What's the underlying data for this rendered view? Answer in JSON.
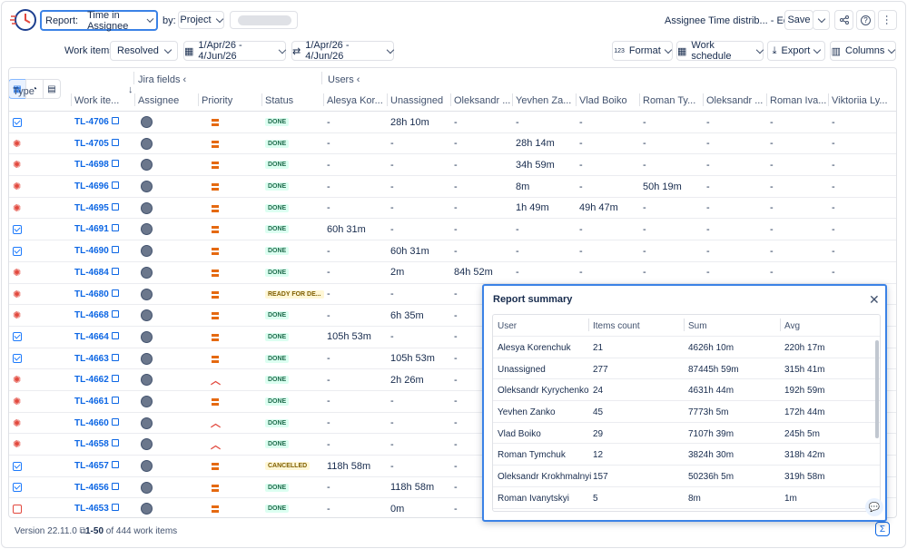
{
  "header": {
    "report_label": "Report:",
    "report_value": "Time in Assignee",
    "by_label": "by:",
    "by_value": "Project",
    "report_title": "Assignee Time distrib... - Edited",
    "save_label": "Save"
  },
  "toolbar": {
    "work_items_label": "Work items:",
    "work_items_value": "Resolved",
    "date1": "1/Apr/26 - 4/Jun/26",
    "date2": "1/Apr/26 - 4/Jun/26",
    "format": "Format",
    "format_prefix": "123",
    "schedule": "Work schedule",
    "export": "Export",
    "columns": "Columns"
  },
  "table": {
    "group1": "Jira fields",
    "group2": "Users",
    "headers": [
      "Type",
      "Work ite...",
      "Assignee",
      "Priority",
      "Status",
      "Alesya Kor...",
      "Unassigned",
      "Oleksandr ...",
      "Yevhen Za...",
      "Vlad Boiko",
      "Roman Ty...",
      "Oleksandr ...",
      "Roman Iva...",
      "Viktoriia Ly..."
    ],
    "rows": [
      {
        "type": "story",
        "key": "TL-4706",
        "priority": "medium",
        "status": "DONE",
        "v": [
          "-",
          "28h 10m",
          "-",
          "-",
          "-",
          "-",
          "-",
          "-",
          "-"
        ]
      },
      {
        "type": "bug",
        "key": "TL-4705",
        "priority": "medium",
        "status": "DONE",
        "v": [
          "-",
          "-",
          "-",
          "28h 14m",
          "-",
          "-",
          "-",
          "-",
          "-"
        ]
      },
      {
        "type": "bug",
        "key": "TL-4698",
        "priority": "medium",
        "status": "DONE",
        "v": [
          "-",
          "-",
          "-",
          "34h 59m",
          "-",
          "-",
          "-",
          "-",
          "-"
        ]
      },
      {
        "type": "bug",
        "key": "TL-4696",
        "priority": "medium",
        "status": "DONE",
        "v": [
          "-",
          "-",
          "-",
          "8m",
          "-",
          "50h 19m",
          "-",
          "-",
          "-"
        ]
      },
      {
        "type": "bug",
        "key": "TL-4695",
        "priority": "medium",
        "status": "DONE",
        "v": [
          "-",
          "-",
          "-",
          "1h 49m",
          "49h 47m",
          "-",
          "-",
          "-",
          "-"
        ]
      },
      {
        "type": "story",
        "key": "TL-4691",
        "priority": "medium",
        "status": "DONE",
        "v": [
          "60h 31m",
          "-",
          "-",
          "-",
          "-",
          "-",
          "-",
          "-",
          "-"
        ]
      },
      {
        "type": "story",
        "key": "TL-4690",
        "priority": "medium",
        "status": "DONE",
        "v": [
          "-",
          "60h 31m",
          "-",
          "-",
          "-",
          "-",
          "-",
          "-",
          "-"
        ]
      },
      {
        "type": "bug",
        "key": "TL-4684",
        "priority": "medium",
        "status": "DONE",
        "v": [
          "-",
          "2m",
          "84h 52m",
          "-",
          "-",
          "-",
          "-",
          "-",
          "-"
        ]
      },
      {
        "type": "bug",
        "key": "TL-4680",
        "priority": "medium",
        "status": "READY FOR DE...",
        "v": [
          "-",
          "-",
          "-",
          "",
          "",
          "",
          "",
          "",
          ""
        ]
      },
      {
        "type": "bug",
        "key": "TL-4668",
        "priority": "medium",
        "status": "DONE",
        "v": [
          "-",
          "6h 35m",
          "-",
          "",
          "",
          "",
          "",
          "",
          ""
        ]
      },
      {
        "type": "story",
        "key": "TL-4664",
        "priority": "medium",
        "status": "DONE",
        "v": [
          "105h 53m",
          "-",
          "-",
          "",
          "",
          "",
          "",
          "",
          ""
        ]
      },
      {
        "type": "story",
        "key": "TL-4663",
        "priority": "medium",
        "status": "DONE",
        "v": [
          "-",
          "105h 53m",
          "-",
          "",
          "",
          "",
          "",
          "",
          ""
        ]
      },
      {
        "type": "bug",
        "key": "TL-4662",
        "priority": "high",
        "status": "DONE",
        "v": [
          "-",
          "2h 26m",
          "-",
          "",
          "",
          "",
          "",
          "",
          ""
        ]
      },
      {
        "type": "bug",
        "key": "TL-4661",
        "priority": "medium",
        "status": "DONE",
        "v": [
          "-",
          "-",
          "-",
          "",
          "",
          "",
          "",
          "",
          ""
        ]
      },
      {
        "type": "bug",
        "key": "TL-4660",
        "priority": "high",
        "status": "DONE",
        "v": [
          "-",
          "-",
          "-",
          "",
          "",
          "",
          "",
          "",
          ""
        ]
      },
      {
        "type": "bug",
        "key": "TL-4658",
        "priority": "high",
        "status": "DONE",
        "v": [
          "-",
          "-",
          "-",
          "",
          "",
          "",
          "",
          "",
          ""
        ]
      },
      {
        "type": "story",
        "key": "TL-4657",
        "priority": "medium",
        "status": "CANCELLED",
        "v": [
          "118h 58m",
          "-",
          "-",
          "",
          "",
          "",
          "",
          "",
          ""
        ]
      },
      {
        "type": "story",
        "key": "TL-4656",
        "priority": "medium",
        "status": "DONE",
        "v": [
          "-",
          "118h 58m",
          "-",
          "",
          "",
          "",
          "",
          "",
          ""
        ]
      },
      {
        "type": "task",
        "key": "TL-4653",
        "priority": "medium",
        "status": "DONE",
        "v": [
          "-",
          "0m",
          "-",
          "",
          "",
          "",
          "",
          "",
          ""
        ]
      }
    ]
  },
  "footer": {
    "version": "Version 22.11.0",
    "range": "1-50",
    "count_text": "of 444 work items"
  },
  "summary": {
    "title": "Report summary",
    "headers": [
      "User",
      "Items count",
      "Sum",
      "Avg"
    ],
    "rows": [
      [
        "Alesya Korenchuk",
        "21",
        "4626h 10m",
        "220h 17m"
      ],
      [
        "Unassigned",
        "277",
        "87445h 59m",
        "315h 41m"
      ],
      [
        "Oleksandr Kyrychenko",
        "24",
        "4631h 44m",
        "192h 59m"
      ],
      [
        "Yevhen Zanko",
        "45",
        "7773h 5m",
        "172h 44m"
      ],
      [
        "Vlad Boiko",
        "29",
        "7107h 39m",
        "245h 5m"
      ],
      [
        "Roman Tymchuk",
        "12",
        "3824h 30m",
        "318h 42m"
      ],
      [
        "Oleksandr Krokhmalnyi",
        "157",
        "50236h 5m",
        "319h 58m"
      ],
      [
        "Roman Ivanytskyi",
        "5",
        "8m",
        "1m"
      ]
    ]
  },
  "colors": {
    "accent": "#3b82e6",
    "link": "#0c66e4",
    "done_bg": "#dcfff1",
    "done_fg": "#216e4e",
    "bug": "#e2483d",
    "story": "#1d7afc"
  }
}
